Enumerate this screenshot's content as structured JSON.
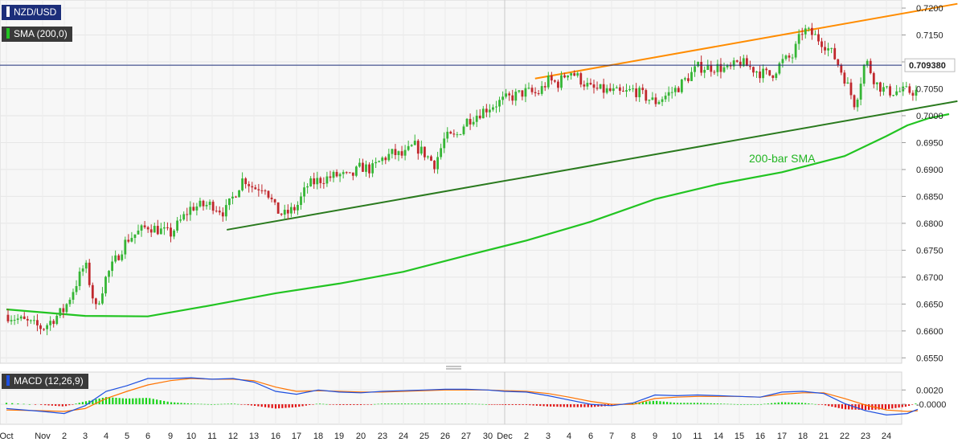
{
  "legend": {
    "symbol": "NZD/USD",
    "sma": "SMA (200,0)",
    "macd": "MACD (12,26,9)"
  },
  "colors": {
    "price": "#1c2e7a",
    "sma": "#22c422",
    "resistance": "#ff8c00",
    "support": "#2a7a1e",
    "up": "#35b535",
    "down": "#c0282d",
    "macd": "#1d4fe0",
    "signal": "#ff7300",
    "hist_pos": "#17d317",
    "hist_neg": "#e01010"
  },
  "chart_data": [
    {
      "type": "candlestick",
      "title": "NZD/USD",
      "ylim": [
        0.654,
        0.7215
      ],
      "y_ticks": [
        "0.7200",
        "0.7150",
        "0.7100",
        "0.7050",
        "0.7000",
        "0.6950",
        "0.6900",
        "0.6850",
        "0.6800",
        "0.6750",
        "0.6700",
        "0.6650",
        "0.6600",
        "0.6550"
      ],
      "x_labels": [
        "Oct",
        "Nov",
        "2",
        "3",
        "4",
        "5",
        "6",
        "9",
        "10",
        "11",
        "12",
        "13",
        "16",
        "17",
        "18",
        "19",
        "20",
        "23",
        "24",
        "25",
        "26",
        "27",
        "30",
        "Dec",
        "2",
        "3",
        "4",
        "6",
        "7",
        "8",
        "9",
        "10",
        "11",
        "14",
        "15",
        "16",
        "17",
        "18",
        "21",
        "22",
        "23",
        "24"
      ],
      "last_price": "0.709380",
      "annotations": [
        "200-bar SMA"
      ],
      "sma_200": [
        [
          0,
          0.664
        ],
        [
          3,
          0.6628
        ],
        [
          6,
          0.6627
        ],
        [
          9,
          0.6648
        ],
        [
          12,
          0.667
        ],
        [
          15,
          0.6688
        ],
        [
          18,
          0.671
        ],
        [
          21,
          0.674
        ],
        [
          24,
          0.6768
        ],
        [
          27,
          0.6803
        ],
        [
          30,
          0.6845
        ],
        [
          33,
          0.6873
        ],
        [
          36,
          0.6895
        ],
        [
          39,
          0.6925
        ],
        [
          41,
          0.6962
        ],
        [
          42,
          0.6982
        ],
        [
          43,
          0.6995
        ],
        [
          44,
          0.7003
        ]
      ],
      "resistance_line": [
        [
          24.4,
          0.7069
        ],
        [
          44.4,
          0.7208
        ]
      ],
      "support_line": [
        [
          9.7,
          0.6788
        ],
        [
          44.4,
          0.7027
        ]
      ],
      "candle_path": [
        [
          0,
          0.663
        ],
        [
          1,
          0.6605
        ],
        [
          2,
          0.664
        ],
        [
          3,
          0.6725
        ],
        [
          3.5,
          0.664
        ],
        [
          4,
          0.67
        ],
        [
          5,
          0.677
        ],
        [
          6,
          0.6795
        ],
        [
          7,
          0.678
        ],
        [
          8,
          0.683
        ],
        [
          9,
          0.6835
        ],
        [
          9.6,
          0.682
        ],
        [
          10.5,
          0.6885
        ],
        [
          11,
          0.6865
        ],
        [
          11.5,
          0.687
        ],
        [
          12,
          0.6825
        ],
        [
          12.4,
          0.6815
        ],
        [
          13,
          0.683
        ],
        [
          13.5,
          0.687
        ],
        [
          14,
          0.688
        ],
        [
          15,
          0.689
        ],
        [
          15.5,
          0.6885
        ],
        [
          16,
          0.6905
        ],
        [
          16.5,
          0.69
        ],
        [
          17,
          0.692
        ],
        [
          17.5,
          0.693
        ],
        [
          18,
          0.6925
        ],
        [
          18.5,
          0.6945
        ],
        [
          19,
          0.693
        ],
        [
          19.5,
          0.691
        ],
        [
          20,
          0.696
        ],
        [
          20.5,
          0.696
        ],
        [
          21,
          0.699
        ],
        [
          22,
          0.7015
        ],
        [
          23,
          0.703
        ],
        [
          24,
          0.7045
        ],
        [
          24.5,
          0.704
        ],
        [
          25,
          0.7065
        ],
        [
          25.5,
          0.706
        ],
        [
          26,
          0.7085
        ],
        [
          26.5,
          0.7068
        ],
        [
          27,
          0.705
        ],
        [
          28,
          0.7045
        ],
        [
          28.5,
          0.704
        ],
        [
          29,
          0.7048
        ],
        [
          30,
          0.7025
        ],
        [
          31,
          0.705
        ],
        [
          31.5,
          0.707
        ],
        [
          32,
          0.709
        ],
        [
          33,
          0.709
        ],
        [
          33.5,
          0.7085
        ],
        [
          34,
          0.71
        ],
        [
          35,
          0.708
        ],
        [
          35.5,
          0.7075
        ],
        [
          36,
          0.71
        ],
        [
          36.5,
          0.711
        ],
        [
          37,
          0.716
        ],
        [
          37.5,
          0.715
        ],
        [
          38,
          0.7135
        ],
        [
          38.5,
          0.711
        ],
        [
          39,
          0.707
        ],
        [
          39.5,
          0.702
        ],
        [
          40,
          0.7105
        ],
        [
          40.5,
          0.706
        ],
        [
          41,
          0.7045
        ],
        [
          41.5,
          0.705
        ],
        [
          42,
          0.708
        ],
        [
          42.5,
          0.7094
        ]
      ],
      "macd": {
        "yticks": [
          "0.0020",
          "-0.0000"
        ],
        "ylim": [
          -0.0028,
          0.0045
        ],
        "macd_line": [
          [
            0,
            -0.0006
          ],
          [
            1,
            -0.001
          ],
          [
            2,
            -0.0013
          ],
          [
            3,
            -0.0002
          ],
          [
            4,
            0.0018
          ],
          [
            5,
            0.0026
          ],
          [
            6,
            0.0036
          ],
          [
            7,
            0.0036
          ],
          [
            8,
            0.0037
          ],
          [
            9,
            0.0035
          ],
          [
            10,
            0.0036
          ],
          [
            11,
            0.0031
          ],
          [
            12,
            0.0018
          ],
          [
            13,
            0.0014
          ],
          [
            14,
            0.002
          ],
          [
            15,
            0.0017
          ],
          [
            16,
            0.0016
          ],
          [
            17,
            0.0018
          ],
          [
            18,
            0.0019
          ],
          [
            19,
            0.002
          ],
          [
            20,
            0.0021
          ],
          [
            21,
            0.0021
          ],
          [
            22,
            0.002
          ],
          [
            23,
            0.0018
          ],
          [
            24,
            0.0017
          ],
          [
            25,
            0.0012
          ],
          [
            26,
            0.0006
          ],
          [
            27,
            0.0
          ],
          [
            28,
            -0.0002
          ],
          [
            29,
            0.0002
          ],
          [
            30,
            0.0013
          ],
          [
            31,
            0.0012
          ],
          [
            32,
            0.0013
          ],
          [
            33,
            0.0012
          ],
          [
            34,
            0.0011
          ],
          [
            35,
            0.001
          ],
          [
            36,
            0.0017
          ],
          [
            37,
            0.0018
          ],
          [
            38,
            0.0015
          ],
          [
            39,
            0.0001
          ],
          [
            40,
            -0.0009
          ],
          [
            41,
            -0.0015
          ],
          [
            42,
            -0.0013
          ],
          [
            42.5,
            -0.0007
          ]
        ],
        "signal_line": [
          [
            0,
            -0.0008
          ],
          [
            1,
            -0.0009
          ],
          [
            2,
            -0.001
          ],
          [
            3,
            -0.0006
          ],
          [
            4,
            0.0008
          ],
          [
            5,
            0.0018
          ],
          [
            6,
            0.0027
          ],
          [
            7,
            0.0033
          ],
          [
            8,
            0.0036
          ],
          [
            9,
            0.0035
          ],
          [
            10,
            0.0035
          ],
          [
            11,
            0.0033
          ],
          [
            12,
            0.0024
          ],
          [
            13,
            0.0018
          ],
          [
            14,
            0.0019
          ],
          [
            15,
            0.0018
          ],
          [
            16,
            0.0017
          ],
          [
            17,
            0.0017
          ],
          [
            18,
            0.0018
          ],
          [
            19,
            0.0019
          ],
          [
            20,
            0.002
          ],
          [
            21,
            0.002
          ],
          [
            22,
            0.002
          ],
          [
            23,
            0.0019
          ],
          [
            24,
            0.0018
          ],
          [
            25,
            0.0015
          ],
          [
            26,
            0.001
          ],
          [
            27,
            0.0004
          ],
          [
            28,
            0.0
          ],
          [
            29,
            0.0
          ],
          [
            30,
            0.0008
          ],
          [
            31,
            0.001
          ],
          [
            32,
            0.0011
          ],
          [
            33,
            0.0011
          ],
          [
            34,
            0.0011
          ],
          [
            35,
            0.001
          ],
          [
            36,
            0.0014
          ],
          [
            37,
            0.0016
          ],
          [
            38,
            0.0016
          ],
          [
            39,
            0.0008
          ],
          [
            40,
            -0.0001
          ],
          [
            41,
            -0.0008
          ],
          [
            42,
            -0.001
          ],
          [
            42.5,
            -0.0009
          ]
        ]
      }
    }
  ]
}
